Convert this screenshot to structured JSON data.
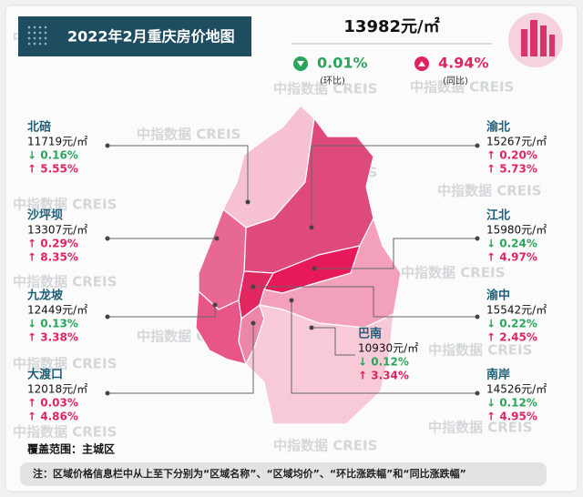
{
  "header": {
    "title": "2022年2月重庆房价地图",
    "avg_price": "13982元/㎡",
    "mom": {
      "value": "0.01%",
      "label": "(环比)"
    },
    "yoy": {
      "value": "4.94%",
      "label": "(同比)"
    }
  },
  "districts": [
    {
      "name": "北碚",
      "price": "11719元/㎡",
      "mom": "↓ 0.16%",
      "yoy": "↑ 5.55%"
    },
    {
      "name": "沙坪坝",
      "price": "13307元/㎡",
      "mom": "↑ 0.29%",
      "yoy": "↑ 8.35%"
    },
    {
      "name": "九龙坡",
      "price": "12449元/㎡",
      "mom": "↓ 0.13%",
      "yoy": "↑ 3.38%"
    },
    {
      "name": "大渡口",
      "price": "12018元/㎡",
      "mom": "↑ 0.03%",
      "yoy": "↑ 4.86%"
    },
    {
      "name": "渝北",
      "price": "15267元/㎡",
      "mom": "↑ 0.20%",
      "yoy": "↑ 5.73%"
    },
    {
      "name": "江北",
      "price": "15980元/㎡",
      "mom": "↓ 0.24%",
      "yoy": "↑ 4.97%"
    },
    {
      "name": "渝中",
      "price": "15542元/㎡",
      "mom": "↓ 0.22%",
      "yoy": "↑ 2.45%"
    },
    {
      "name": "南岸",
      "price": "14526元/㎡",
      "mom": "↓ 0.12%",
      "yoy": "↑ 4.95%"
    },
    {
      "name": "巴南",
      "price": "10930元/㎡",
      "mom": "↓ 0.12%",
      "yoy": "↑ 3.34%"
    }
  ],
  "coverage": "覆盖范围：主城区",
  "note": "注：区域价格信息栏中从上至下分别为“区域名称”、“区域均价”、“环比涨跌幅”和“同比涨跌幅”",
  "watermark": "中指数据 CREIS"
}
